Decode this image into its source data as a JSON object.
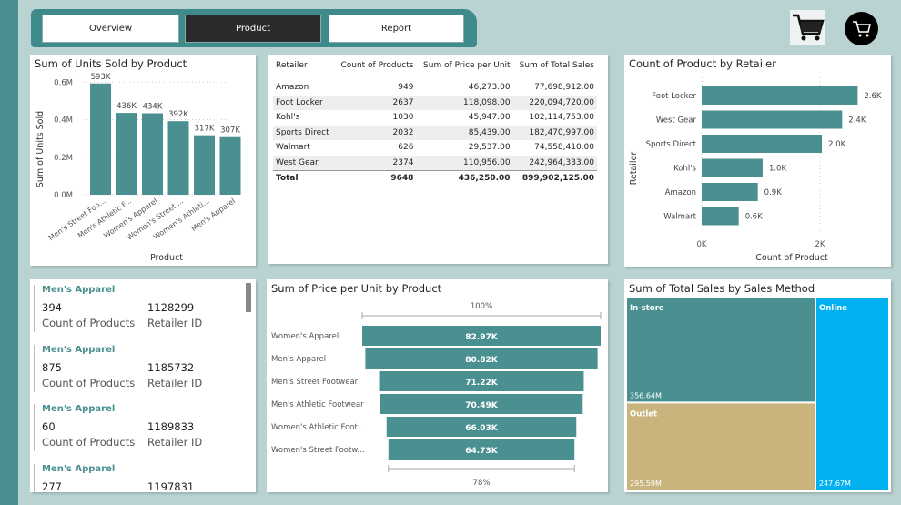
{
  "nav": {
    "tabs": [
      {
        "label": "Overview",
        "active": false
      },
      {
        "label": "Product",
        "active": true
      },
      {
        "label": "Report",
        "active": false
      }
    ]
  },
  "icons": {
    "cart": "shopping-cart-icon",
    "cart_circle": "shopping-cart-circle-icon"
  },
  "colors": {
    "bar": "#4a9090",
    "in_store": "#4a9090",
    "outlet": "#c8b47c",
    "online": "#00b0f0"
  },
  "units_chart": {
    "title": "Sum of Units Sold by Product"
  },
  "retailer_chart": {
    "title": "Count of Product by Retailer"
  },
  "funnel_chart": {
    "title": "Sum of Price per Unit by Product"
  },
  "treemap": {
    "title": "Sum of Total Sales by Sales Method"
  },
  "table": {
    "columns": [
      "Retailer",
      "Count of Products",
      "Sum of Price per Unit",
      "Sum of Total Sales"
    ],
    "rows": [
      [
        "Amazon",
        "949",
        "46,273.00",
        "77,698,912.00"
      ],
      [
        "Foot Locker",
        "2637",
        "118,098.00",
        "220,094,720.00"
      ],
      [
        "Kohl's",
        "1030",
        "45,947.00",
        "102,114,753.00"
      ],
      [
        "Sports Direct",
        "2032",
        "85,439.00",
        "182,470,997.00"
      ],
      [
        "Walmart",
        "626",
        "29,537.00",
        "74,558,410.00"
      ],
      [
        "West Gear",
        "2374",
        "110,956.00",
        "242,964,333.00"
      ]
    ],
    "total": [
      "Total",
      "9648",
      "436,250.00",
      "899,902,125.00"
    ]
  },
  "cards": [
    {
      "title": "Men's Apparel",
      "count": "394",
      "retailer_id": "1128299",
      "count_label": "Count of Products",
      "id_label": "Retailer ID"
    },
    {
      "title": "Men's Apparel",
      "count": "875",
      "retailer_id": "1185732",
      "count_label": "Count of Products",
      "id_label": "Retailer ID"
    },
    {
      "title": "Men's Apparel",
      "count": "60",
      "retailer_id": "1189833",
      "count_label": "Count of Products",
      "id_label": "Retailer ID"
    },
    {
      "title": "Men's Apparel",
      "count": "277",
      "retailer_id": "1197831",
      "count_label": "Count of Products",
      "id_label": "Retailer ID"
    }
  ],
  "chart_data": [
    {
      "type": "bar",
      "title": "Sum of Units Sold by Product",
      "xlabel": "Product",
      "ylabel": "Sum of Units Sold",
      "categories": [
        "Men's Street Foo...",
        "Men's Athletic F...",
        "Women's Apparel",
        "Women's Street ...",
        "Women's Athleti...",
        "Men's Apparel"
      ],
      "values": [
        593000,
        436000,
        434000,
        392000,
        317000,
        307000
      ],
      "data_labels": [
        "593K",
        "436K",
        "434K",
        "392K",
        "317K",
        "307K"
      ],
      "yticks": [
        "0.0M",
        "0.2M",
        "0.4M",
        "0.6M"
      ],
      "ylim": [
        0,
        650000
      ],
      "grid": true
    },
    {
      "type": "bar",
      "orientation": "horizontal",
      "title": "Count of Product by Retailer",
      "xlabel": "Count of Product",
      "ylabel": "Retailer",
      "categories": [
        "Foot Locker",
        "West Gear",
        "Sports Direct",
        "Kohl's",
        "Amazon",
        "Walmart"
      ],
      "values": [
        2637,
        2374,
        2032,
        1030,
        949,
        626
      ],
      "data_labels": [
        "2.6K",
        "2.4K",
        "2.0K",
        "1.0K",
        "0.9K",
        "0.6K"
      ],
      "xticks": [
        "0K",
        "2K"
      ],
      "xlim": [
        0,
        2900
      ],
      "grid": true
    },
    {
      "type": "funnel",
      "title": "Sum of Price per Unit by Product",
      "categories": [
        "Women's Apparel",
        "Men's Apparel",
        "Men's Street Footwear",
        "Men's Athletic Footwear",
        "Women's Athletic Foot...",
        "Women's Street Footw..."
      ],
      "values": [
        82970,
        80820,
        71220,
        70490,
        66030,
        64730
      ],
      "data_labels": [
        "82.97K",
        "80.82K",
        "71.22K",
        "70.49K",
        "66.03K",
        "64.73K"
      ],
      "top_label": "100%",
      "bottom_label": "78%"
    },
    {
      "type": "treemap",
      "title": "Sum of Total Sales by Sales Method",
      "categories": [
        "In-store",
        "Outlet",
        "Online"
      ],
      "values": [
        356.64,
        295.59,
        247.67
      ],
      "data_labels": [
        "356.64M",
        "295.59M",
        "247.67M"
      ]
    }
  ]
}
